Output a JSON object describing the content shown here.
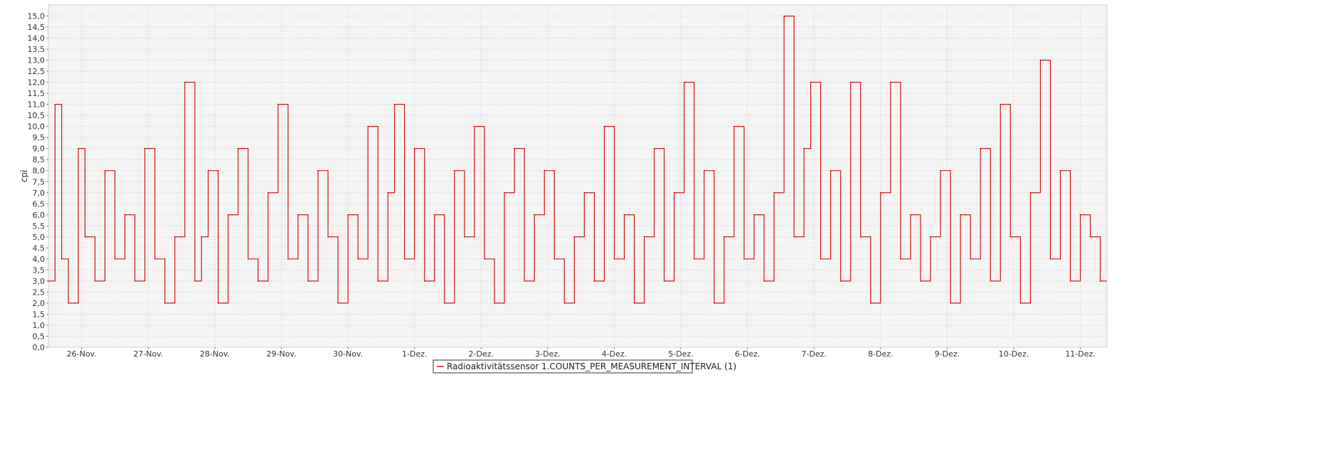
{
  "chart_data": {
    "type": "line",
    "step": true,
    "ylabel": "cpi",
    "xlabel": "",
    "title": "",
    "ylim": [
      0,
      15.5
    ],
    "yticks": [
      "0,0",
      "0,5",
      "1,0",
      "1,5",
      "2,0",
      "2,5",
      "3,0",
      "3,5",
      "4,0",
      "4,5",
      "5,0",
      "5,5",
      "6,0",
      "6,5",
      "7,0",
      "7,5",
      "8,0",
      "8,5",
      "9,0",
      "9,5",
      "10,0",
      "10,5",
      "11,0",
      "11,5",
      "12,0",
      "12,5",
      "13,0",
      "13,5",
      "14,0",
      "14,5",
      "15,0"
    ],
    "xlim": [
      0,
      15.9
    ],
    "xticks": [
      {
        "value": 0.5,
        "label": "26-Nov."
      },
      {
        "value": 1.5,
        "label": "27-Nov."
      },
      {
        "value": 2.5,
        "label": "28-Nov."
      },
      {
        "value": 3.5,
        "label": "29-Nov."
      },
      {
        "value": 4.5,
        "label": "30-Nov."
      },
      {
        "value": 5.5,
        "label": "1-Dez."
      },
      {
        "value": 6.5,
        "label": "2-Dez."
      },
      {
        "value": 7.5,
        "label": "3-Dez."
      },
      {
        "value": 8.5,
        "label": "4-Dez."
      },
      {
        "value": 9.5,
        "label": "5-Dez."
      },
      {
        "value": 10.5,
        "label": "6-Dez."
      },
      {
        "value": 11.5,
        "label": "7-Dez."
      },
      {
        "value": 12.5,
        "label": "8-Dez."
      },
      {
        "value": 13.5,
        "label": "9-Dez."
      },
      {
        "value": 14.5,
        "label": "10-Dez."
      },
      {
        "value": 15.5,
        "label": "11-Dez."
      }
    ],
    "grid": true,
    "legend_position": "bottom-center",
    "series": [
      {
        "name": "Radioaktivitätssensor 1.COUNTS_PER_MEASUREMENT_INTERVAL (1)",
        "color": "#cc0000",
        "x": [
          0.0,
          0.1,
          0.2,
          0.3,
          0.45,
          0.55,
          0.7,
          0.85,
          1.0,
          1.15,
          1.3,
          1.45,
          1.6,
          1.75,
          1.9,
          2.05,
          2.2,
          2.3,
          2.4,
          2.55,
          2.7,
          2.85,
          3.0,
          3.15,
          3.3,
          3.45,
          3.6,
          3.75,
          3.9,
          4.05,
          4.2,
          4.35,
          4.5,
          4.65,
          4.8,
          4.95,
          5.1,
          5.2,
          5.35,
          5.5,
          5.65,
          5.8,
          5.95,
          6.1,
          6.25,
          6.4,
          6.55,
          6.7,
          6.85,
          7.0,
          7.15,
          7.3,
          7.45,
          7.6,
          7.75,
          7.9,
          8.05,
          8.2,
          8.35,
          8.5,
          8.65,
          8.8,
          8.95,
          9.1,
          9.25,
          9.4,
          9.55,
          9.7,
          9.85,
          10.0,
          10.15,
          10.3,
          10.45,
          10.6,
          10.75,
          10.9,
          11.05,
          11.2,
          11.35,
          11.45,
          11.6,
          11.75,
          11.9,
          12.05,
          12.2,
          12.35,
          12.5,
          12.65,
          12.8,
          12.95,
          13.1,
          13.25,
          13.4,
          13.55,
          13.7,
          13.85,
          14.0,
          14.15,
          14.3,
          14.45,
          14.6,
          14.75,
          14.9,
          15.05,
          15.2,
          15.35,
          15.5,
          15.65,
          15.8
        ],
        "y": [
          3,
          11,
          4,
          2,
          9,
          5,
          3,
          8,
          4,
          6,
          3,
          9,
          4,
          2,
          5,
          12,
          3,
          5,
          8,
          2,
          6,
          9,
          4,
          3,
          7,
          11,
          4,
          6,
          3,
          8,
          5,
          2,
          6,
          4,
          10,
          3,
          7,
          11,
          4,
          9,
          3,
          6,
          2,
          8,
          5,
          10,
          4,
          2,
          7,
          9,
          3,
          6,
          8,
          4,
          2,
          5,
          7,
          3,
          10,
          4,
          6,
          2,
          5,
          9,
          3,
          7,
          12,
          4,
          8,
          2,
          5,
          10,
          4,
          6,
          3,
          7,
          15,
          5,
          9,
          12,
          4,
          8,
          3,
          12,
          5,
          2,
          7,
          12,
          4,
          6,
          3,
          5,
          8,
          2,
          6,
          4,
          9,
          3,
          11,
          5,
          2,
          7,
          13,
          4,
          8,
          3,
          6,
          5,
          3
        ]
      }
    ]
  }
}
